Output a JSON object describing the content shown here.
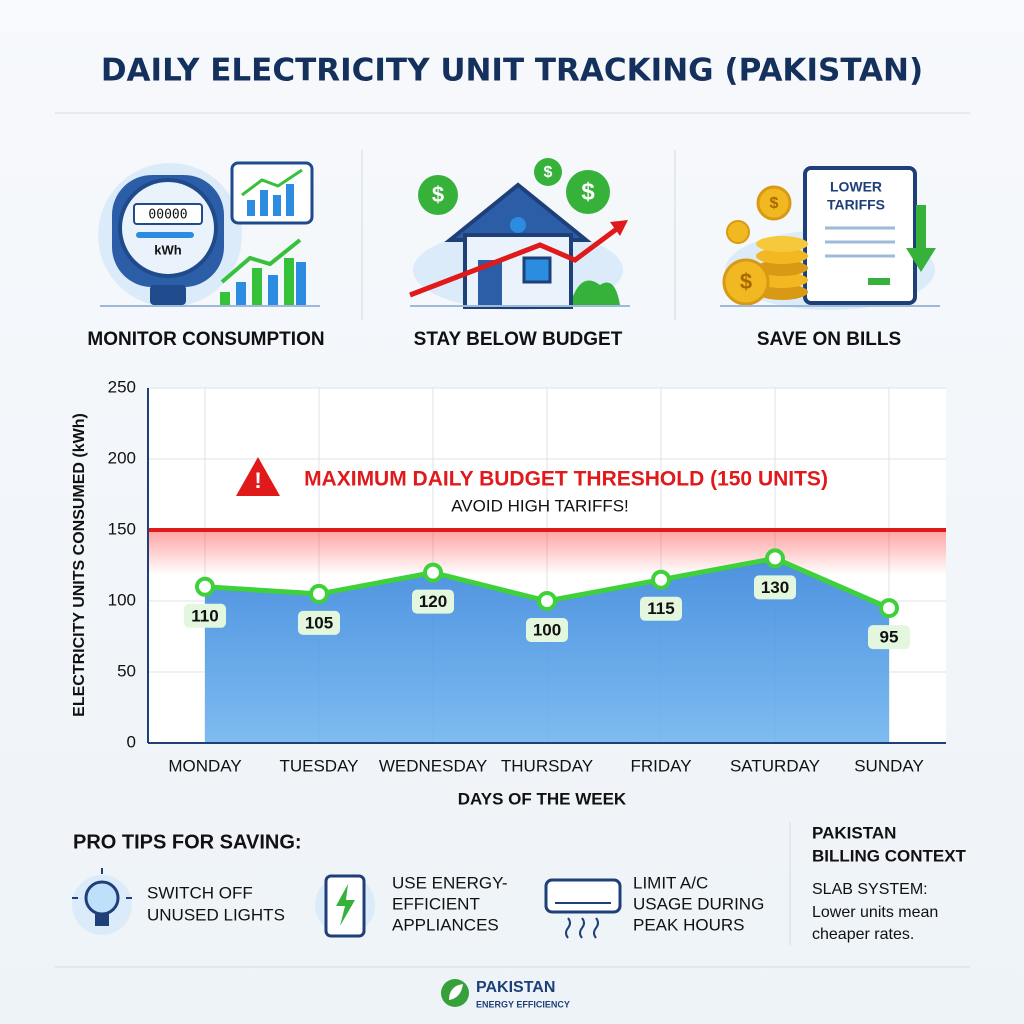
{
  "title": "DAILY ELECTRICITY UNIT TRACKING (PAKISTAN)",
  "features": [
    {
      "label": "MONITOR CONSUMPTION",
      "meter_reading": "00000",
      "meter_unit": "kWh"
    },
    {
      "label": "STAY BELOW BUDGET",
      "currency_symbol": "$"
    },
    {
      "label": "SAVE ON BILLS",
      "document_lines": [
        "LOWER",
        "TARIFFS"
      ],
      "currency_symbol": "$"
    }
  ],
  "chart_data": {
    "type": "line",
    "y_axis_label": "ELECTRICITY UNITS CONSUMED (kWh)",
    "x_axis_label": "DAYS OF THE WEEK",
    "categories": [
      "MONDAY",
      "TUESDAY",
      "WEDNESDAY",
      "THURSDAY",
      "FRIDAY",
      "SATURDAY",
      "SUNDAY"
    ],
    "values": [
      110,
      105,
      120,
      100,
      115,
      130,
      95
    ],
    "color": "#3fd13a",
    "area_color": "#3f8fe0",
    "threshold_color": "#e0191b",
    "ylim": [
      0,
      250
    ],
    "yticks": [
      0,
      50,
      100,
      150,
      200,
      250
    ],
    "grid": true,
    "threshold": {
      "value": 150,
      "label": "MAXIMUM DAILY BUDGET THRESHOLD (150 UNITS)",
      "note": "AVOID HIGH TARIFFS!"
    }
  },
  "tips": {
    "title": "PRO TIPS FOR SAVING:",
    "items": [
      {
        "lines": [
          "SWITCH OFF",
          "UNUSED LIGHTS"
        ]
      },
      {
        "lines": [
          "USE ENERGY-",
          "EFFICIENT",
          "APPLIANCES"
        ]
      },
      {
        "lines": [
          "LIMIT A/C",
          "USAGE DURING",
          "PEAK HOURS"
        ]
      }
    ]
  },
  "context": {
    "title_lines": [
      "PAKISTAN",
      "BILLING CONTEXT"
    ],
    "subtitle": "SLAB SYSTEM:",
    "text_lines": [
      "Lower units mean",
      "cheaper rates."
    ]
  },
  "footer": {
    "name": "PAKISTAN",
    "tagline": "ENERGY EFFICIENCY"
  }
}
